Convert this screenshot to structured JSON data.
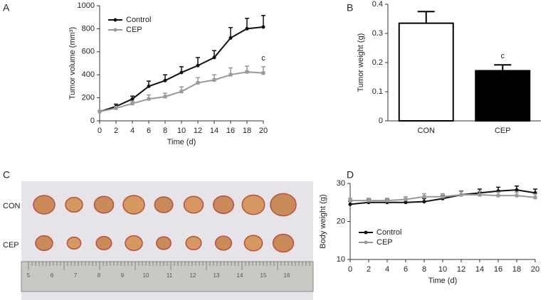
{
  "chart_data": [
    {
      "type": "line",
      "panel": "A",
      "xlabel": "Time (d)",
      "ylabel": "Tumor volume (mm³)",
      "x": [
        0,
        2,
        4,
        6,
        8,
        10,
        12,
        14,
        16,
        18,
        20
      ],
      "xlim": [
        0,
        20
      ],
      "xticks": [
        0,
        2,
        4,
        6,
        8,
        10,
        12,
        14,
        16,
        18,
        20
      ],
      "ylim": [
        0,
        1000
      ],
      "yticks": [
        0,
        200,
        400,
        600,
        800,
        1000
      ],
      "legend": "upper left",
      "annotation": "c",
      "series": [
        {
          "name": "Control",
          "color": "#111111",
          "marker": "circle",
          "values": [
            80,
            125,
            190,
            300,
            350,
            420,
            480,
            550,
            720,
            800,
            815
          ],
          "errors": [
            10,
            20,
            25,
            45,
            50,
            50,
            70,
            60,
            90,
            90,
            100
          ]
        },
        {
          "name": "CEP",
          "color": "#999999",
          "marker": "square",
          "values": [
            80,
            110,
            150,
            190,
            210,
            255,
            330,
            355,
            400,
            425,
            415
          ],
          "errors": [
            10,
            15,
            20,
            35,
            30,
            40,
            45,
            45,
            60,
            50,
            55
          ]
        }
      ]
    },
    {
      "type": "bar",
      "panel": "B",
      "ylabel": "Tumor weight (g)",
      "categories": [
        "CON",
        "CEP"
      ],
      "values": [
        0.335,
        0.172
      ],
      "errors": [
        0.04,
        0.02
      ],
      "colors": [
        "#ffffff",
        "#000000"
      ],
      "ylim": [
        0,
        0.4
      ],
      "yticks": [
        0,
        0.1,
        0.2,
        0.3,
        0.4
      ],
      "annotation": "c"
    },
    {
      "type": "line",
      "panel": "D",
      "xlabel": "Time (d)",
      "ylabel": "Body weight (g)",
      "x": [
        0,
        2,
        4,
        6,
        8,
        10,
        12,
        14,
        16,
        18,
        20
      ],
      "xlim": [
        0,
        20
      ],
      "xticks": [
        0,
        2,
        4,
        6,
        8,
        10,
        12,
        14,
        16,
        18,
        20
      ],
      "ylim": [
        10,
        30
      ],
      "yticks": [
        10,
        20,
        30
      ],
      "legend": "lower left",
      "series": [
        {
          "name": "Control",
          "color": "#111111",
          "marker": "circle",
          "values": [
            24.5,
            25,
            25,
            25,
            25.2,
            26,
            27,
            27.5,
            28,
            28.3,
            27.5
          ],
          "errors": [
            0.8,
            0.8,
            0.8,
            0.8,
            0.8,
            0.9,
            1,
            1,
            1,
            1,
            1
          ]
        },
        {
          "name": "CEP",
          "color": "#999999",
          "marker": "square",
          "values": [
            25.5,
            25.5,
            25.5,
            25.8,
            26.5,
            26.5,
            27,
            27,
            26.8,
            26.8,
            26.3
          ],
          "errors": [
            0.6,
            0.6,
            0.6,
            0.7,
            0.8,
            0.8,
            0.9,
            0.9,
            0.9,
            0.9,
            0.9
          ]
        }
      ]
    }
  ],
  "photo": {
    "panel": "C",
    "rows": [
      "CON",
      "CEP"
    ],
    "ruler_labels": [
      "5",
      "6",
      "7",
      "8",
      "9",
      "10",
      "11",
      "12",
      "13",
      "14",
      "15",
      "16"
    ]
  }
}
